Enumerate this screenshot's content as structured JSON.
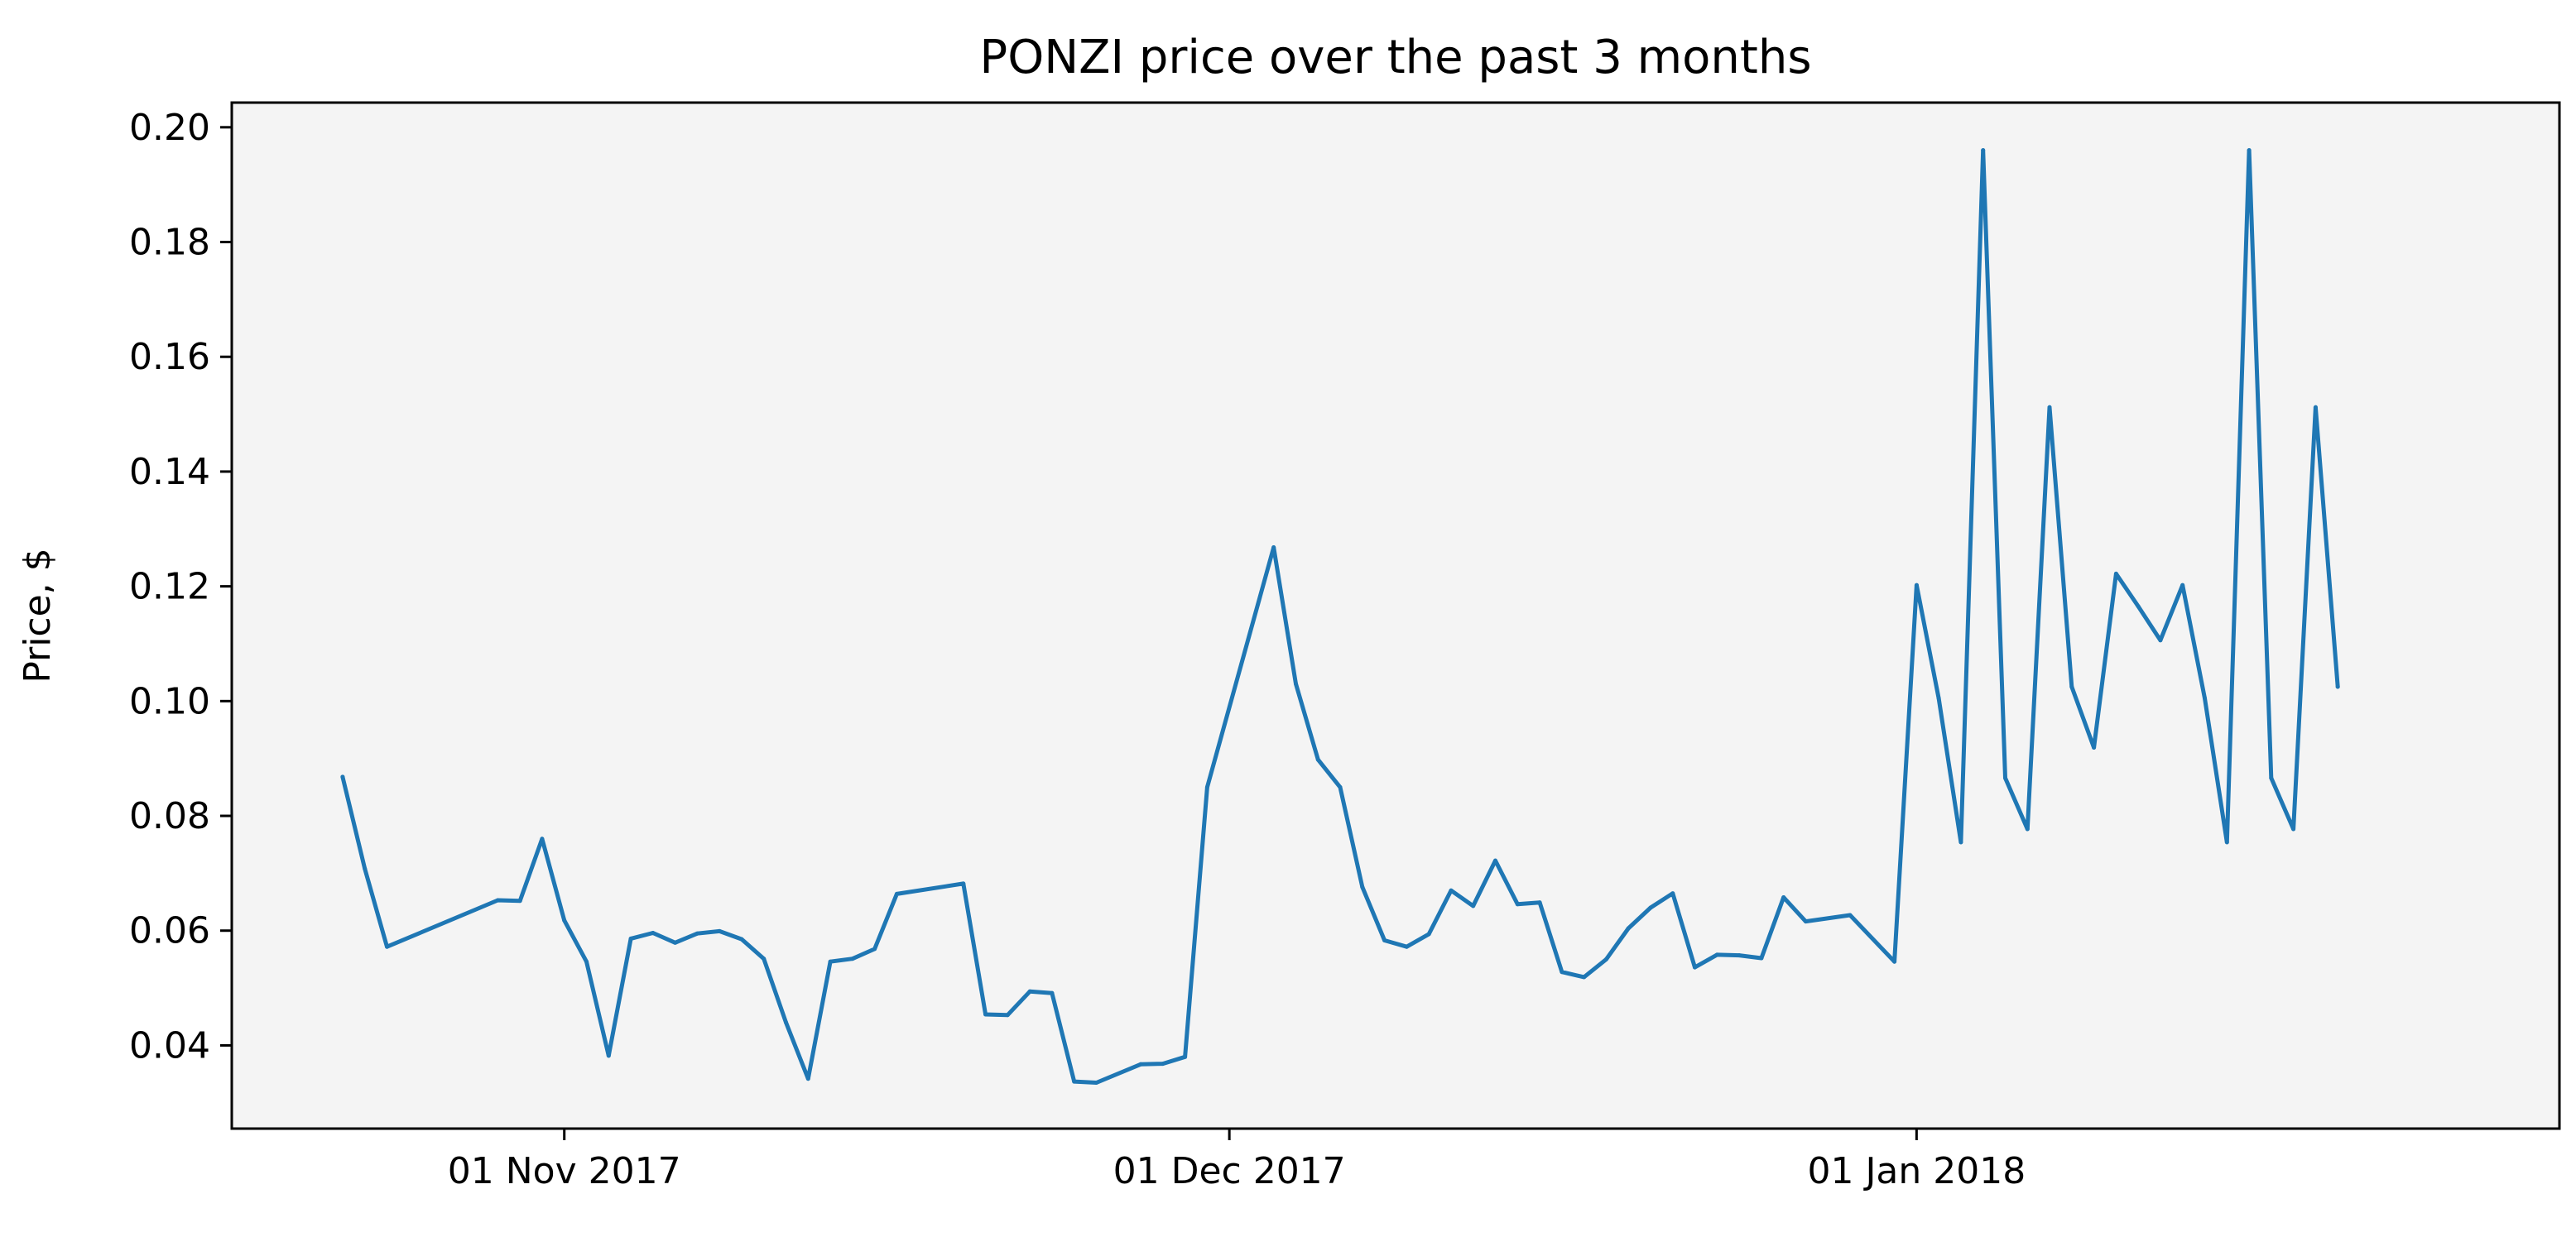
{
  "chart_data": {
    "type": "line",
    "title": "PONZI price over the past 3 months",
    "xlabel": "",
    "ylabel": "Price, $",
    "ylim": [
      0.0255,
      0.2043
    ],
    "xlim": [
      "2017-10-17",
      "2018-01-30"
    ],
    "grid": false,
    "plot_background": "#f4f4f4",
    "line_color": "#1f77b4",
    "x_ticks": [
      {
        "value": "2017-11-01",
        "label": "01 Nov 2017"
      },
      {
        "value": "2017-12-01",
        "label": "01 Dec 2017"
      },
      {
        "value": "2018-01-01",
        "label": "01 Jan 2018"
      }
    ],
    "y_ticks": [
      {
        "value": 0.04,
        "label": "0.04"
      },
      {
        "value": 0.06,
        "label": "0.06"
      },
      {
        "value": 0.08,
        "label": "0.08"
      },
      {
        "value": 0.1,
        "label": "0.10"
      },
      {
        "value": 0.12,
        "label": "0.12"
      },
      {
        "value": 0.14,
        "label": "0.14"
      },
      {
        "value": 0.16,
        "label": "0.16"
      },
      {
        "value": 0.18,
        "label": "0.18"
      },
      {
        "value": 0.2,
        "label": "0.20"
      }
    ],
    "series": [
      {
        "x": [
          "2017-10-22",
          "2017-10-23",
          "2017-10-24",
          "2017-10-29",
          "2017-10-30",
          "2017-10-31",
          "2017-11-01",
          "2017-11-02",
          "2017-11-03",
          "2017-11-04",
          "2017-11-05",
          "2017-11-06",
          "2017-11-07",
          "2017-11-08",
          "2017-11-09",
          "2017-11-10",
          "2017-11-11",
          "2017-11-12",
          "2017-11-13",
          "2017-11-14",
          "2017-11-15",
          "2017-11-16",
          "2017-11-19",
          "2017-11-20",
          "2017-11-21",
          "2017-11-22",
          "2017-11-23",
          "2017-11-24",
          "2017-11-25",
          "2017-11-27",
          "2017-11-28",
          "2017-11-29",
          "2017-11-30",
          "2017-12-03",
          "2017-12-04",
          "2017-12-05",
          "2017-12-06",
          "2017-12-07",
          "2017-12-08",
          "2017-12-09",
          "2017-12-10",
          "2017-12-11",
          "2017-12-12",
          "2017-12-13",
          "2017-12-14",
          "2017-12-15",
          "2017-12-16",
          "2017-12-17",
          "2017-12-18",
          "2017-12-19",
          "2017-12-20",
          "2017-12-21",
          "2017-12-22",
          "2017-12-23",
          "2017-12-24",
          "2017-12-25",
          "2017-12-26",
          "2017-12-27",
          "2017-12-29",
          "2017-12-31",
          "2018-01-01",
          "2018-01-02",
          "2018-01-03",
          "2018-01-04",
          "2018-01-05",
          "2018-01-06",
          "2018-01-07",
          "2018-01-08",
          "2018-01-09",
          "2018-01-10",
          "2018-01-11",
          "2018-01-12",
          "2018-01-13",
          "2018-01-14",
          "2018-01-15",
          "2018-01-16",
          "2018-01-17",
          "2018-01-18",
          "2018-01-19",
          "2018-01-20"
        ],
        "y": [
          0.0868,
          0.0708,
          0.0572,
          0.0653,
          0.0652,
          0.076,
          0.0618,
          0.0546,
          0.0382,
          0.0586,
          0.0596,
          0.0579,
          0.0595,
          0.0599,
          0.0585,
          0.0551,
          0.044,
          0.0342,
          0.0546,
          0.0551,
          0.0568,
          0.0664,
          0.0682,
          0.0454,
          0.0453,
          0.0494,
          0.0491,
          0.0337,
          0.0335,
          0.0367,
          0.0368,
          0.038,
          0.085,
          0.1268,
          0.103,
          0.0898,
          0.085,
          0.0676,
          0.0583,
          0.0572,
          0.0594,
          0.067,
          0.0643,
          0.0722,
          0.0646,
          0.0649,
          0.0528,
          0.0519,
          0.055,
          0.0604,
          0.064,
          0.0665,
          0.0536,
          0.0558,
          0.0557,
          0.0552,
          0.0658,
          0.0616,
          0.0627,
          0.0546,
          0.1202,
          0.1005,
          0.0754,
          0.196,
          0.0866,
          0.0777,
          0.1512,
          0.1025,
          0.0919,
          0.1222,
          0.1165,
          0.1106,
          0.1202,
          0.1005,
          0.0754,
          0.196,
          0.0866,
          0.0777,
          0.1512,
          0.1025
        ]
      }
    ]
  }
}
